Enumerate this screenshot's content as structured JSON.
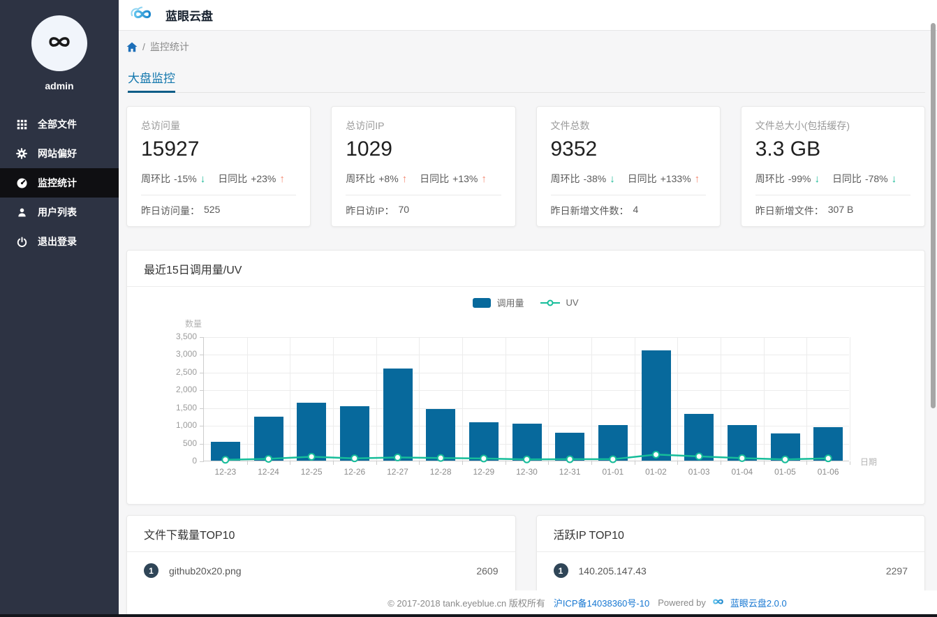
{
  "header": {
    "app_title": "蓝眼云盘"
  },
  "sidebar": {
    "username": "admin",
    "items": [
      {
        "label": "全部文件",
        "icon": "grid-icon",
        "active": false
      },
      {
        "label": "网站偏好",
        "icon": "gear-icon",
        "active": false
      },
      {
        "label": "监控统计",
        "icon": "gauge-icon",
        "active": true
      },
      {
        "label": "用户列表",
        "icon": "user-icon",
        "active": false
      },
      {
        "label": "退出登录",
        "icon": "power-icon",
        "active": false
      }
    ]
  },
  "breadcrumb": {
    "home_icon": "home-icon",
    "separator": "/",
    "current": "监控统计"
  },
  "tabs": {
    "active": "大盘监控"
  },
  "stat_cards": [
    {
      "label": "总访问量",
      "value": "15927",
      "trends": [
        {
          "label": "周环比",
          "value": "-15%",
          "arrow": "↓",
          "direction": "down"
        },
        {
          "label": "日同比",
          "value": "+23%",
          "arrow": "↑",
          "direction": "up"
        }
      ],
      "footer_label": "昨日访问量：",
      "footer_value": "525"
    },
    {
      "label": "总访问IP",
      "value": "1029",
      "trends": [
        {
          "label": "周环比",
          "value": "+8%",
          "arrow": "↑",
          "direction": "up"
        },
        {
          "label": "日同比",
          "value": "+13%",
          "arrow": "↑",
          "direction": "up"
        }
      ],
      "footer_label": "昨日访IP：",
      "footer_value": "70"
    },
    {
      "label": "文件总数",
      "value": "9352",
      "trends": [
        {
          "label": "周环比",
          "value": "-38%",
          "arrow": "↓",
          "direction": "down"
        },
        {
          "label": "日同比",
          "value": "+133%",
          "arrow": "↑",
          "direction": "up"
        }
      ],
      "footer_label": "昨日新增文件数：",
      "footer_value": "4"
    },
    {
      "label": "文件总大小(包括缓存)",
      "value": "3.3 GB",
      "trends": [
        {
          "label": "周环比",
          "value": "-99%",
          "arrow": "↓",
          "direction": "down"
        },
        {
          "label": "日同比",
          "value": "-78%",
          "arrow": "↓",
          "direction": "down"
        }
      ],
      "footer_label": "昨日新增文件：",
      "footer_value": "307 B"
    }
  ],
  "chart_panel": {
    "title": "最近15日调用量/UV"
  },
  "chart_data": {
    "type": "bar",
    "title": "最近15日调用量/UV",
    "categories": [
      "12-23",
      "12-24",
      "12-25",
      "12-26",
      "12-27",
      "12-28",
      "12-29",
      "12-30",
      "12-31",
      "01-01",
      "01-02",
      "01-03",
      "01-04",
      "01-05",
      "01-06"
    ],
    "series": [
      {
        "name": "调用量",
        "type": "bar",
        "color": "#07699c",
        "values": [
          530,
          1240,
          1640,
          1530,
          2600,
          1450,
          1090,
          1050,
          790,
          1010,
          3110,
          1310,
          1010,
          760,
          940
        ]
      },
      {
        "name": "UV",
        "type": "line",
        "color": "#16bd9a",
        "values": [
          45,
          70,
          130,
          85,
          110,
          95,
          80,
          55,
          60,
          60,
          190,
          140,
          90,
          55,
          85
        ]
      }
    ],
    "xlabel": "日期",
    "ylabel": "数量",
    "ylim": [
      0,
      3500
    ],
    "yticks": [
      0,
      500,
      1000,
      1500,
      2000,
      2500,
      3000,
      3500
    ],
    "ytick_labels": [
      "0",
      "500",
      "1,000",
      "1,500",
      "2,000",
      "2,500",
      "3,000",
      "3,500"
    ],
    "grid": true,
    "legend_position": "top-center"
  },
  "top_lists": [
    {
      "title": "文件下载量TOP10",
      "rows": [
        {
          "rank": "1",
          "name": "github20x20.png",
          "value": "2609"
        }
      ]
    },
    {
      "title": "活跃IP TOP10",
      "rows": [
        {
          "rank": "1",
          "name": "140.205.147.43",
          "value": "2297"
        }
      ]
    }
  ],
  "footer": {
    "copyright": "© 2017-2018 tank.eyeblue.cn 版权所有",
    "icp_link": "沪ICP备14038360号-10",
    "powered_by": "Powered by",
    "product_link": "蓝眼云盘2.0.0"
  },
  "colors": {
    "bar": "#07699c",
    "line": "#16bd9a",
    "trend_up": "#f3876f",
    "trend_down": "#17b894",
    "tab_blue": "#1377ad",
    "link_blue": "#1677d2",
    "sidebar_bg": "#2d3343",
    "sidebar_active_bg": "#0f0f12",
    "badge_bg": "#2f4557"
  }
}
